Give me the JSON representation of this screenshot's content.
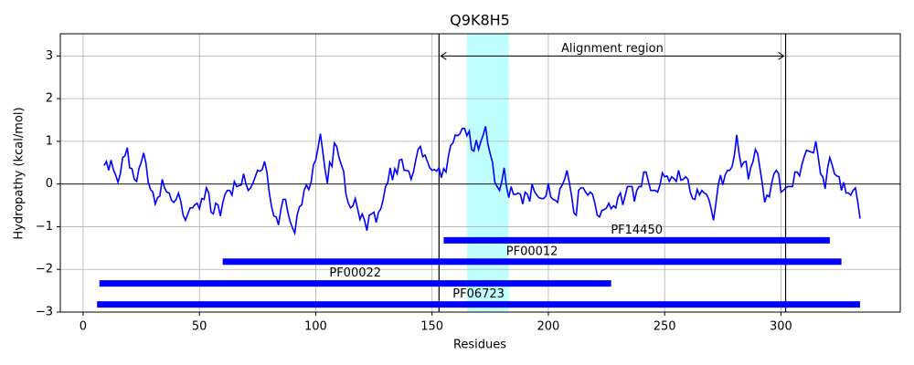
{
  "chart_data": {
    "type": "line",
    "title": "Q9K8H5",
    "x_label": "Residues",
    "y_label": "Hydropathy (kcal/mol)",
    "x": [
      9,
      10,
      11,
      12,
      13,
      14,
      15,
      16,
      17,
      18,
      19,
      20,
      21,
      22,
      23,
      24,
      25,
      26,
      27,
      28,
      29,
      30,
      31,
      32,
      33,
      34,
      35,
      36,
      37,
      38,
      39,
      40,
      41,
      42,
      43,
      44,
      45,
      46,
      47,
      48,
      49,
      50,
      51,
      52,
      53,
      54,
      55,
      56,
      57,
      58,
      59,
      60,
      61,
      62,
      63,
      64,
      65,
      66,
      67,
      68,
      69,
      70,
      71,
      72,
      73,
      74,
      75,
      76,
      77,
      78,
      79,
      80,
      81,
      82,
      83,
      84,
      85,
      86,
      87,
      88,
      89,
      90,
      91,
      92,
      93,
      94,
      95,
      96,
      97,
      98,
      99,
      100,
      101,
      102,
      103,
      104,
      105,
      106,
      107,
      108,
      109,
      110,
      111,
      112,
      113,
      114,
      115,
      116,
      117,
      118,
      119,
      120,
      121,
      122,
      123,
      124,
      125,
      126,
      127,
      128,
      129,
      130,
      131,
      132,
      133,
      134,
      135,
      136,
      137,
      138,
      139,
      140,
      141,
      142,
      143,
      144,
      145,
      146,
      147,
      148,
      149,
      150,
      151,
      152,
      153,
      154,
      155,
      156,
      157,
      158,
      159,
      160,
      161,
      162,
      163,
      164,
      165,
      166,
      167,
      168,
      169,
      170,
      171,
      172,
      173,
      174,
      175,
      176,
      177,
      178,
      179,
      180,
      181,
      182,
      183,
      184,
      185,
      186,
      187,
      188,
      189,
      190,
      191,
      192,
      193,
      194,
      195,
      196,
      197,
      198,
      199,
      200,
      201,
      202,
      203,
      204,
      205,
      206,
      207,
      208,
      209,
      210,
      211,
      212,
      213,
      214,
      215,
      216,
      217,
      218,
      219,
      220,
      221,
      222,
      223,
      224,
      225,
      226,
      227,
      228,
      229,
      230,
      231,
      232,
      233,
      234,
      235,
      236,
      237,
      238,
      239,
      240,
      241,
      242,
      243,
      244,
      245,
      246,
      247,
      248,
      249,
      250,
      251,
      252,
      253,
      254,
      255,
      256,
      257,
      258,
      259,
      260,
      261,
      262,
      263,
      264,
      265,
      266,
      267,
      268,
      269,
      270,
      271,
      272,
      273,
      274,
      275,
      276,
      277,
      278,
      279,
      280,
      281,
      282,
      283,
      284,
      285,
      286,
      287,
      288,
      289,
      290,
      291,
      292,
      293,
      294,
      295,
      296,
      297,
      298,
      299,
      300,
      301,
      302,
      303,
      304,
      305,
      306,
      307,
      308,
      309,
      310,
      311,
      312,
      313,
      314,
      315,
      316,
      317,
      318,
      319,
      320,
      321,
      322,
      323,
      324,
      325,
      326,
      327,
      328,
      329,
      330,
      331,
      332,
      333,
      334
    ],
    "series": [
      {
        "color": "#0000ff",
        "values": [
          0.43,
          0.53,
          0.32,
          0.56,
          0.34,
          0.21,
          0.04,
          0.24,
          0.62,
          0.66,
          0.85,
          0.38,
          0.36,
          0.11,
          0.06,
          0.36,
          0.51,
          0.73,
          0.49,
          0.04,
          -0.13,
          -0.19,
          -0.47,
          -0.32,
          -0.28,
          0.11,
          -0.09,
          -0.19,
          -0.21,
          -0.38,
          -0.43,
          -0.36,
          -0.21,
          -0.41,
          -0.73,
          -0.85,
          -0.7,
          -0.56,
          -0.56,
          -0.49,
          -0.45,
          -0.58,
          -0.34,
          -0.36,
          -0.09,
          -0.21,
          -0.66,
          -0.7,
          -0.45,
          -0.49,
          -0.75,
          -0.45,
          -0.24,
          -0.15,
          -0.15,
          -0.26,
          0.06,
          -0.06,
          -0.04,
          -0.02,
          0.24,
          0,
          -0.15,
          -0.09,
          0.02,
          0.17,
          0.32,
          0.3,
          0.34,
          0.53,
          0.28,
          -0.19,
          -0.53,
          -0.75,
          -0.77,
          -0.96,
          -0.6,
          -0.36,
          -0.36,
          -0.66,
          -0.88,
          -1.03,
          -1.15,
          -0.73,
          -0.53,
          -0.49,
          -0.15,
          -0.02,
          -0.13,
          0.04,
          0.45,
          0.56,
          0.85,
          1.18,
          0.77,
          0.34,
          0.02,
          0.51,
          0.41,
          0.96,
          0.88,
          0.62,
          0.45,
          0.3,
          -0.24,
          -0.45,
          -0.56,
          -0.51,
          -0.34,
          -0.58,
          -0.83,
          -0.7,
          -0.85,
          -1.09,
          -0.73,
          -0.7,
          -0.66,
          -0.9,
          -0.66,
          -0.58,
          -0.36,
          -0.06,
          0.04,
          0.38,
          0.09,
          0.36,
          0.24,
          0.56,
          0.58,
          0.32,
          0.32,
          0.3,
          0.11,
          0.28,
          0.56,
          0.81,
          0.88,
          0.64,
          0.68,
          0.53,
          0.38,
          0.32,
          0.34,
          0.3,
          0.38,
          0.15,
          0.36,
          0.28,
          0.64,
          0.9,
          0.96,
          1.15,
          1.13,
          1.18,
          1.3,
          1.3,
          1.13,
          1.24,
          0.81,
          0.77,
          1.03,
          0.81,
          1.0,
          1.15,
          1.35,
          0.94,
          0.71,
          0.51,
          0.04,
          -0.06,
          -0.15,
          0.06,
          0.38,
          -0.06,
          -0.32,
          -0.06,
          -0.24,
          -0.24,
          -0.21,
          -0.24,
          -0.47,
          -0.19,
          -0.24,
          -0.41,
          0,
          -0.17,
          -0.26,
          -0.32,
          -0.34,
          -0.34,
          -0.28,
          0.02,
          -0.3,
          -0.36,
          -0.38,
          -0.43,
          -0.11,
          -0.02,
          0.11,
          0.32,
          0.04,
          -0.28,
          -0.68,
          -0.73,
          -0.15,
          -0.09,
          -0.09,
          -0.19,
          -0.26,
          -0.19,
          -0.24,
          -0.45,
          -0.73,
          -0.77,
          -0.62,
          -0.6,
          -0.56,
          -0.45,
          -0.58,
          -0.51,
          -0.56,
          -0.3,
          -0.21,
          -0.49,
          -0.28,
          -0.06,
          -0.06,
          -0.06,
          -0.41,
          -0.15,
          -0.06,
          -0.06,
          0.28,
          0.28,
          0.06,
          -0.15,
          -0.15,
          -0.15,
          -0.19,
          -0.02,
          0.26,
          0.17,
          0.19,
          0.06,
          0.17,
          0.13,
          0.06,
          0.32,
          0.09,
          0.11,
          0.17,
          0.11,
          -0.19,
          -0.34,
          -0.36,
          -0.13,
          -0.26,
          -0.15,
          -0.21,
          -0.24,
          -0.36,
          -0.58,
          -0.85,
          -0.47,
          -0.04,
          0.21,
          -0.02,
          0.21,
          0.32,
          0.32,
          0.41,
          0.68,
          1.15,
          0.71,
          0.41,
          0.51,
          0.53,
          0.11,
          0.38,
          0.53,
          0.81,
          0.71,
          0.36,
          0,
          -0.43,
          -0.26,
          -0.3,
          0.02,
          0.24,
          0.32,
          0.24,
          -0.19,
          -0.15,
          -0.09,
          -0.06,
          -0.06,
          -0.06,
          0.28,
          0.28,
          0.19,
          0.45,
          0.64,
          0.79,
          0.77,
          0.75,
          0.73,
          1.0,
          0.64,
          0.24,
          0.17,
          -0.11,
          0.36,
          0.62,
          0.45,
          0.24,
          0.19,
          0.17,
          -0.15,
          0.04,
          -0.21,
          -0.21,
          -0.26,
          -0.15,
          -0.09,
          -0.41,
          -0.81
        ]
      }
    ],
    "xlim": [
      -9.8,
      351.3
    ],
    "ylim": [
      -3,
      3.52
    ],
    "xticks": [
      0,
      50,
      100,
      150,
      200,
      250,
      300
    ],
    "yticks": [
      {
        "value": -3,
        "label": "−3"
      },
      {
        "value": -2,
        "label": "−2"
      },
      {
        "value": -1,
        "label": "−1"
      },
      0,
      1,
      2,
      3
    ],
    "grid": true,
    "hline": 0,
    "highlight_span": [
      165,
      183
    ],
    "highlight_color": "#bfffff",
    "vlines": [
      153,
      302
    ],
    "annotation": {
      "text": "Alignment region",
      "y": 3
    },
    "domain_color": "#0000ff",
    "domains": [
      {
        "name": "PF14450",
        "start": 155,
        "end": 321,
        "y": -1.32
      },
      {
        "name": "PF00012",
        "start": 60,
        "end": 326,
        "y": -1.82
      },
      {
        "name": "PF00022",
        "start": 7,
        "end": 227,
        "y": -2.33
      },
      {
        "name": "PF06723",
        "start": 6,
        "end": 334,
        "y": -2.82
      }
    ]
  }
}
